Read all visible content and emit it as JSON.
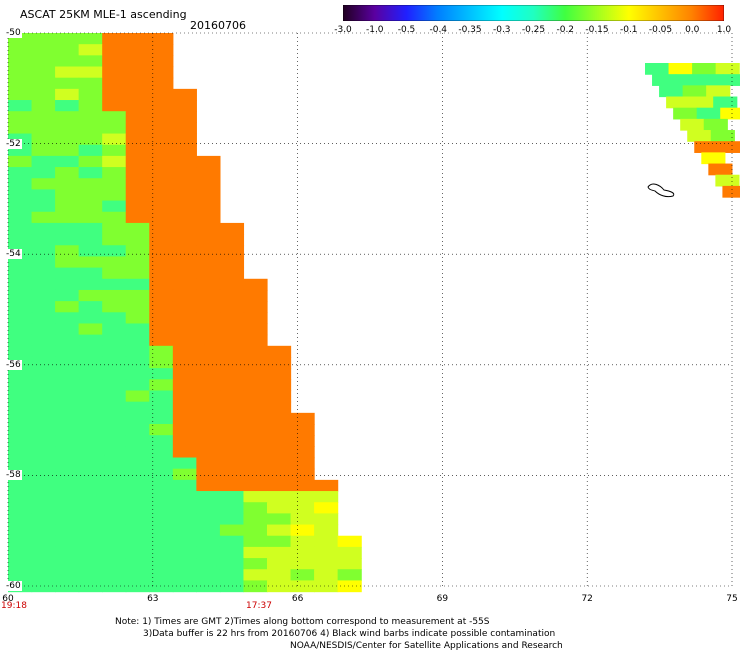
{
  "header": {
    "title": "ASCAT 25KM MLE-1 ascending",
    "date": "20160706"
  },
  "colorbar": {
    "labels": [
      "-3.0",
      "-1.0",
      "-0.5",
      "-0.4",
      "-0.35",
      "-0.3",
      "-0.25",
      "-0.2",
      "-0.15",
      "-0.1",
      "-0.05",
      "0.0",
      "1.0"
    ],
    "colors": [
      "#200020",
      "#5a00a0",
      "#2020ff",
      "#0080ff",
      "#00c0ff",
      "#00ffff",
      "#20ffc0",
      "#40ff40",
      "#a0ff20",
      "#ffff00",
      "#ffc000",
      "#ff8000",
      "#ff2000"
    ]
  },
  "map": {
    "lat_labels": [
      "-50",
      "-52",
      "-54",
      "-56",
      "-58",
      "-60"
    ],
    "lon_labels": [
      "60",
      "63",
      "66",
      "69",
      "72",
      "75"
    ],
    "lat_range": [
      -60,
      -50
    ],
    "lon_range": [
      60,
      75
    ],
    "time_labels": [
      {
        "text": "19:18",
        "lon": 60
      },
      {
        "text": "17:37",
        "lon": 65.2
      }
    ],
    "graticule": "dotted"
  },
  "notes": {
    "line1": "Note: 1) Times are GMT 2)Times along bottom correspond to measurement at -55S",
    "line2": "3)Data buffer is 22 hrs from 20160706 4) Black wind barbs indicate possible contamination",
    "line3": "NOAA/NESDIS/Center for Satellite Applications and Research"
  }
}
